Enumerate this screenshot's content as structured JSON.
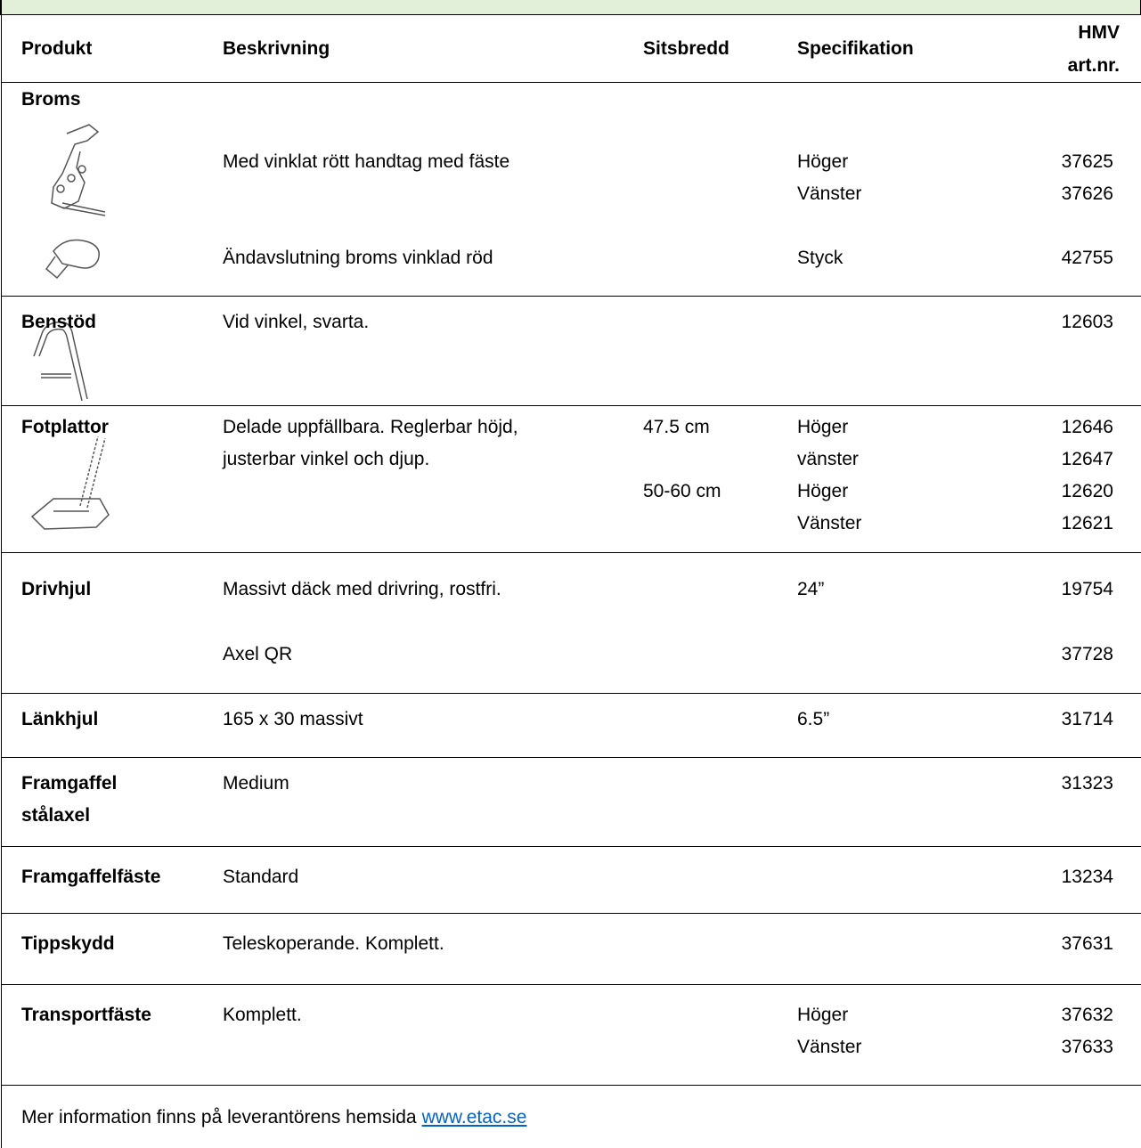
{
  "table": {
    "columns": [
      "Produkt",
      "Beskrivning",
      "Sitsbredd",
      "Specifikation",
      "HMV art.nr."
    ],
    "sections": [
      {
        "lines": [
          {
            "product": "Broms"
          },
          {
            "description": "Med vinklat rött handtag med fäste",
            "specification": "Höger",
            "article": "37625"
          },
          {
            "specification": "Vänster",
            "article": "37626"
          },
          {
            "description": "Ändavslutning broms vinklad röd",
            "specification": "Styck",
            "article": "42755"
          }
        ]
      },
      {
        "lines": [
          {
            "product": "Benstöd",
            "description": "Vid vinkel, svarta.",
            "article": "12603"
          }
        ]
      },
      {
        "lines": [
          {
            "product": "Fotplattor",
            "description": "Delade uppfällbara. Reglerbar höjd,",
            "seat_width": "47.5 cm",
            "specification": "Höger",
            "article": "12646"
          },
          {
            "description": "justerbar vinkel och djup.",
            "specification": "vänster",
            "article": "12647"
          },
          {
            "seat_width": "50-60 cm",
            "specification": "Höger",
            "article": "12620"
          },
          {
            "specification": "Vänster",
            "article": "12621"
          }
        ]
      },
      {
        "lines": [
          {
            "product": "Drivhjul",
            "description": "Massivt däck med drivring, rostfri.",
            "specification": "24”",
            "article": "19754"
          },
          {
            "description": "Axel QR",
            "article": "37728"
          }
        ]
      },
      {
        "lines": [
          {
            "product": "Länkhjul",
            "description": "165 x 30 massivt",
            "specification": "6.5”",
            "article": "31714"
          }
        ]
      },
      {
        "lines": [
          {
            "product": "Framgaffel",
            "description": "Medium",
            "article": "31323"
          },
          {
            "product": "stålaxel"
          }
        ]
      },
      {
        "lines": [
          {
            "product": "Framgaffelfäste",
            "description": "Standard",
            "article": "13234"
          }
        ]
      },
      {
        "lines": [
          {
            "product": "Tippskydd",
            "description": "Teleskoperande. Komplett.",
            "article": "37631"
          }
        ]
      },
      {
        "lines": [
          {
            "product": "Transportfäste",
            "description": "Komplett.",
            "specification": "Höger",
            "article": "37632"
          },
          {
            "specification": "Vänster",
            "article": "37633"
          }
        ]
      }
    ]
  },
  "footer": {
    "text": "Mer information finns på leverantörens hemsida",
    "link": "www.etac.se"
  }
}
